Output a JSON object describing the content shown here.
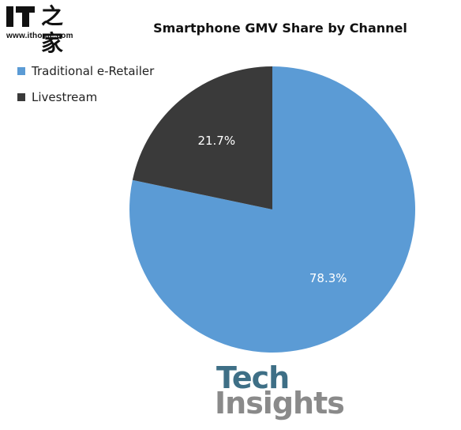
{
  "watermark": {
    "site_glyph": "之家",
    "url": "www.ithome.com"
  },
  "footer_logo": {
    "line1": "Tech",
    "line2": "Insights"
  },
  "chart_data": {
    "type": "pie",
    "title": "Smartphone GMV Share by Channel",
    "legend_position": "top-left",
    "slices": [
      {
        "label": "Traditional e-Retailer",
        "value": 78.3,
        "display": "78.3%",
        "color": "#5b9bd5"
      },
      {
        "label": "Livestream",
        "value": 21.7,
        "display": "21.7%",
        "color": "#3a3a3a"
      }
    ]
  }
}
